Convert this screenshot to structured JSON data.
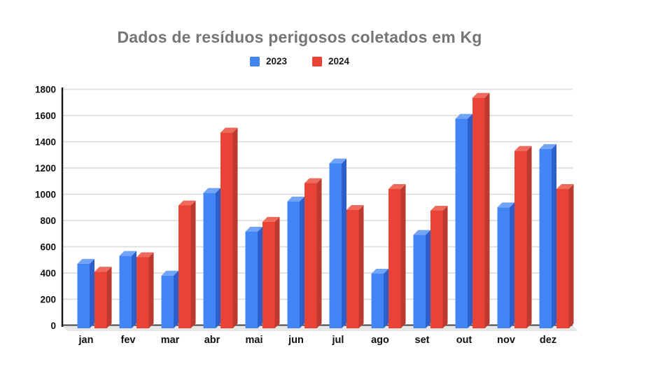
{
  "page": {
    "background": "#ffffff"
  },
  "chart_data": {
    "type": "bar",
    "style": "3d-column-pairs",
    "title": "Dados de resíduos perigosos coletados em Kg",
    "title_color": "#757575",
    "categories": [
      "jan",
      "fev",
      "mar",
      "abr",
      "mai",
      "jun",
      "jul",
      "ago",
      "set",
      "out",
      "nov",
      "dez"
    ],
    "series": [
      {
        "name": "2023",
        "color": "#4285F4",
        "side_color": "#2C5FC9",
        "top_color": "#71A3F6",
        "values": [
          470,
          530,
          380,
          1010,
          715,
          945,
          1235,
          395,
          690,
          1575,
          900,
          1345
        ]
      },
      {
        "name": "2024",
        "color": "#EA4335",
        "side_color": "#BE3A2F",
        "top_color": "#ED6A5C",
        "values": [
          410,
          520,
          915,
          1470,
          790,
          1085,
          880,
          1040,
          875,
          1735,
          1330,
          1040
        ]
      }
    ],
    "xlabel": "",
    "ylabel": "",
    "ylim": [
      0,
      1800
    ],
    "ytick_step": 200,
    "yticks": [
      0,
      200,
      400,
      600,
      800,
      1000,
      1200,
      1400,
      1600,
      1800
    ],
    "grid": true,
    "gridline_color": "#d9d9d9",
    "axis_color": "#1a1a1a",
    "baseline_color": "#424242",
    "floor_color": "#e8e8e8",
    "tick_label_color": "#111111",
    "legend_position": "top"
  }
}
